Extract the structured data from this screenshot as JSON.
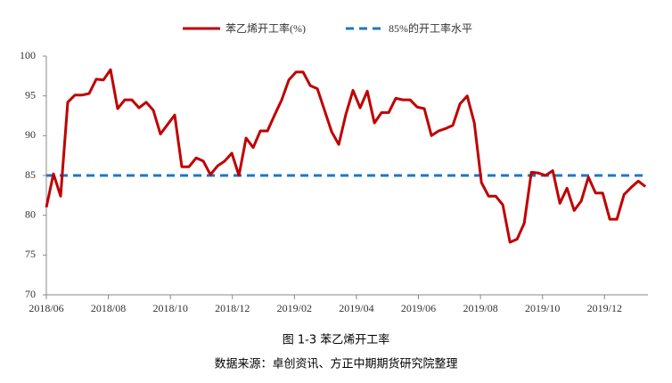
{
  "chart_data": {
    "type": "line",
    "caption": "图 1-3  苯乙烯开工率",
    "source": "数据来源：卓创资讯、方正中期期货研究院整理",
    "x": [
      0,
      0.23,
      0.46,
      0.69,
      0.92,
      1.15,
      1.38,
      1.61,
      1.84,
      2.07,
      2.3,
      2.53,
      2.76,
      2.99,
      3.22,
      3.45,
      3.68,
      3.91,
      4.14,
      4.37,
      4.6,
      4.83,
      5.06,
      5.29,
      5.52,
      5.75,
      5.98,
      6.21,
      6.44,
      6.67,
      6.9,
      7.13,
      7.36,
      7.59,
      7.82,
      8.05,
      8.28,
      8.51,
      8.74,
      8.97,
      9.2,
      9.43,
      9.66,
      9.89,
      10.12,
      10.35,
      10.58,
      10.81,
      11.04,
      11.27,
      11.5,
      11.73,
      11.96,
      12.19,
      12.42,
      12.65,
      12.88,
      13.11,
      13.34,
      13.57,
      13.8,
      14.03,
      14.26,
      14.49,
      14.72,
      14.95,
      15.18,
      15.41,
      15.64,
      15.87,
      16.1,
      16.33,
      16.56,
      16.79,
      17.02,
      17.25,
      17.48,
      17.71,
      17.94,
      18.17,
      18.4,
      18.63,
      18.86,
      19.09,
      19.32
    ],
    "series": [
      {
        "name": "苯乙烯开工率(%)",
        "color": "#c00000",
        "values": [
          81.0,
          85.2,
          82.4,
          94.2,
          95.1,
          95.1,
          95.3,
          97.1,
          97.0,
          98.3,
          93.4,
          94.5,
          94.5,
          93.5,
          94.2,
          93.2,
          90.2,
          91.4,
          92.6,
          86.1,
          86.1,
          87.2,
          86.8,
          85.1,
          86.2,
          86.8,
          87.8,
          85.0,
          89.7,
          88.5,
          90.6,
          90.6,
          92.6,
          94.5,
          97.0,
          98.0,
          98.0,
          96.3,
          95.9,
          93.2,
          90.5,
          88.9,
          92.7,
          95.7,
          93.5,
          95.6,
          91.6,
          92.9,
          92.9,
          94.7,
          94.5,
          94.5,
          93.6,
          93.4,
          90.0,
          90.6,
          90.9,
          91.3,
          94.0,
          95.0,
          91.6,
          84.1,
          82.4,
          82.4,
          81.3,
          76.6,
          77.0,
          79.0,
          85.4,
          85.3,
          85.0,
          85.6,
          81.5,
          83.4,
          80.6,
          81.8,
          84.8,
          82.8,
          82.8,
          79.5,
          79.5,
          82.6,
          83.5,
          84.3,
          83.6
        ]
      }
    ],
    "reference_lines": [
      {
        "name": "85%的开工率水平",
        "value": 85,
        "color": "#1f77c4",
        "style": "dashed"
      }
    ],
    "xlim": [
      0,
      19.4
    ],
    "xticks": [
      {
        "value": 0,
        "label": "2018/06"
      },
      {
        "value": 2,
        "label": "2018/08"
      },
      {
        "value": 4,
        "label": "2018/10"
      },
      {
        "value": 6,
        "label": "2018/12"
      },
      {
        "value": 8,
        "label": "2019/02"
      },
      {
        "value": 10,
        "label": "2019/04"
      },
      {
        "value": 12,
        "label": "2019/06"
      },
      {
        "value": 14,
        "label": "2019/08"
      },
      {
        "value": 16,
        "label": "2019/10"
      },
      {
        "value": 18,
        "label": "2019/12"
      }
    ],
    "ylim": [
      70,
      100
    ],
    "yticks": [
      70,
      75,
      80,
      85,
      90,
      95,
      100
    ],
    "grid": false,
    "legend": "top"
  }
}
